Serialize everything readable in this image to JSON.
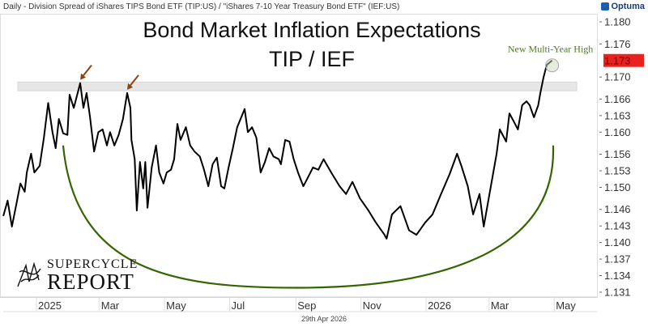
{
  "header": {
    "description": "Daily - Division Spread of iShares TIPS Bond ETF (TIP:US) / \"iShares 7-10 Year Treasury Bond ETF\" (IEF:US)",
    "brand": "Optuma"
  },
  "footer": {
    "date": "29th Apr 2026"
  },
  "logo": {
    "line1": "SUPERCYCLE",
    "line2": "REPORT"
  },
  "colors": {
    "line": "#000000",
    "arc": "#336600",
    "arrow": "#8b4513",
    "price_label": "#e8231f",
    "annotation": "#4f7a1f",
    "band": "#e6e6e6"
  },
  "chart_data": {
    "type": "line",
    "title": "Bond Market Inflation Expectations",
    "subtitle": "TIP / IEF",
    "xlabel": "",
    "ylabel": "",
    "x_ticks": [
      {
        "label": "2025",
        "date": "2025-01-01"
      },
      {
        "label": "Mar",
        "date": "2025-03-01"
      },
      {
        "label": "May",
        "date": "2025-05-01"
      },
      {
        "label": "Jul",
        "date": "2025-07-01"
      },
      {
        "label": "Sep",
        "date": "2025-09-01"
      },
      {
        "label": "Nov",
        "date": "2025-11-01"
      },
      {
        "label": "2026",
        "date": "2026-01-01"
      },
      {
        "label": "Mar",
        "date": "2026-03-01"
      },
      {
        "label": "May",
        "date": "2026-05-01"
      }
    ],
    "y_ticks": [
      "1.180",
      "1.176",
      "1.170",
      "1.166",
      "1.163",
      "1.160",
      "1.156",
      "1.153",
      "1.150",
      "1.146",
      "1.143",
      "1.140",
      "1.137",
      "1.134",
      "1.131"
    ],
    "xlim": [
      "2024-11-27",
      "2026-05-28"
    ],
    "ylim": [
      1.1305,
      1.1815
    ],
    "grid": false,
    "last_value_label": "1.173",
    "annotation": "New Multi-Year High",
    "resistance_band": [
      1.1675,
      1.1691
    ],
    "arc": {
      "start": [
        "2025-01-26",
        1.1576
      ],
      "bottom": [
        "2025-09-01",
        1.1318
      ],
      "end": [
        "2026-04-30",
        1.1576
      ]
    },
    "arrows_at": [
      "2025-02-11",
      "2025-03-27"
    ],
    "series": [
      {
        "dates": [
          "2024-12-01",
          "2024-12-05",
          "2024-12-09",
          "2024-12-13",
          "2024-12-17",
          "2024-12-21",
          "2024-12-23",
          "2024-12-27",
          "2024-12-30",
          "2025-01-04",
          "2025-01-08",
          "2025-01-12",
          "2025-01-16",
          "2025-01-19",
          "2025-01-22",
          "2025-01-26",
          "2025-01-30",
          "2025-02-01",
          "2025-02-05",
          "2025-02-09",
          "2025-02-11",
          "2025-02-14",
          "2025-02-17",
          "2025-02-20",
          "2025-02-24",
          "2025-02-28",
          "2025-03-04",
          "2025-03-08",
          "2025-03-11",
          "2025-03-15",
          "2025-03-19",
          "2025-03-23",
          "2025-03-27",
          "2025-03-30",
          "2025-03-31",
          "2025-04-03",
          "2025-04-05",
          "2025-04-08",
          "2025-04-11",
          "2025-04-13",
          "2025-04-15",
          "2025-04-19",
          "2025-04-23",
          "2025-04-26",
          "2025-04-30",
          "2025-05-03",
          "2025-05-07",
          "2025-05-10",
          "2025-05-13",
          "2025-05-16",
          "2025-05-21",
          "2025-05-25",
          "2025-05-29",
          "2025-06-03",
          "2025-06-07",
          "2025-06-11",
          "2025-06-15",
          "2025-06-19",
          "2025-06-23",
          "2025-06-26",
          "2025-06-30",
          "2025-07-04",
          "2025-07-08",
          "2025-07-15",
          "2025-07-18",
          "2025-07-22",
          "2025-07-26",
          "2025-07-30",
          "2025-08-03",
          "2025-08-07",
          "2025-08-11",
          "2025-08-16",
          "2025-08-18",
          "2025-08-22",
          "2025-08-26",
          "2025-08-30",
          "2025-09-03",
          "2025-09-08",
          "2025-09-12",
          "2025-09-17",
          "2025-09-22",
          "2025-09-27",
          "2025-10-05",
          "2025-10-12",
          "2025-10-18",
          "2025-10-24",
          "2025-10-31",
          "2025-11-08",
          "2025-11-15",
          "2025-11-23",
          "2025-11-25",
          "2025-11-30",
          "2025-12-08",
          "2025-12-16",
          "2025-12-23",
          "2025-12-31",
          "2026-01-07",
          "2026-01-15",
          "2026-01-23",
          "2026-01-30",
          "2026-02-03",
          "2026-02-09",
          "2026-02-14",
          "2026-02-20",
          "2026-02-24",
          "2026-02-28",
          "2026-03-04",
          "2026-03-08",
          "2026-03-11",
          "2026-03-17",
          "2026-03-20",
          "2026-03-24",
          "2026-03-28",
          "2026-04-01",
          "2026-04-05",
          "2026-04-08",
          "2026-04-12",
          "2026-04-16",
          "2026-04-18",
          "2026-04-21",
          "2026-04-24",
          "2026-04-29"
        ],
        "values": [
          1.1448,
          1.1476,
          1.1429,
          1.1468,
          1.1507,
          1.1492,
          1.1527,
          1.1561,
          1.1527,
          1.1539,
          1.159,
          1.1653,
          1.16,
          1.1571,
          1.1624,
          1.1598,
          1.1595,
          1.1668,
          1.1644,
          1.1674,
          1.1689,
          1.1644,
          1.1671,
          1.163,
          1.1565,
          1.16,
          1.1605,
          1.1576,
          1.16,
          1.1576,
          1.1595,
          1.1624,
          1.1671,
          1.1644,
          1.1586,
          1.1551,
          1.1458,
          1.1546,
          1.1498,
          1.1546,
          1.1463,
          1.1536,
          1.1576,
          1.1527,
          1.1507,
          1.1527,
          1.1532,
          1.1551,
          1.1615,
          1.1586,
          1.1609,
          1.1576,
          1.1565,
          1.1556,
          1.1532,
          1.1502,
          1.1542,
          1.1554,
          1.1502,
          1.1498,
          1.1536,
          1.1571,
          1.1609,
          1.1642,
          1.16,
          1.1609,
          1.159,
          1.1527,
          1.1546,
          1.1571,
          1.1556,
          1.1551,
          1.1542,
          1.1586,
          1.1583,
          1.1551,
          1.1527,
          1.1502,
          1.1517,
          1.1536,
          1.1532,
          1.1551,
          1.1524,
          1.1502,
          1.1488,
          1.151,
          1.148,
          1.1458,
          1.1436,
          1.1414,
          1.1407,
          1.1451,
          1.1466,
          1.1422,
          1.1414,
          1.1436,
          1.1451,
          1.1488,
          1.1524,
          1.1561,
          1.1539,
          1.1502,
          1.1451,
          1.1488,
          1.1429,
          1.1473,
          1.1517,
          1.1561,
          1.1605,
          1.1583,
          1.1634,
          1.162,
          1.1605,
          1.1649,
          1.1656,
          1.1649,
          1.1627,
          1.1649,
          1.1671,
          1.17,
          1.1722,
          1.173
        ]
      }
    ]
  }
}
